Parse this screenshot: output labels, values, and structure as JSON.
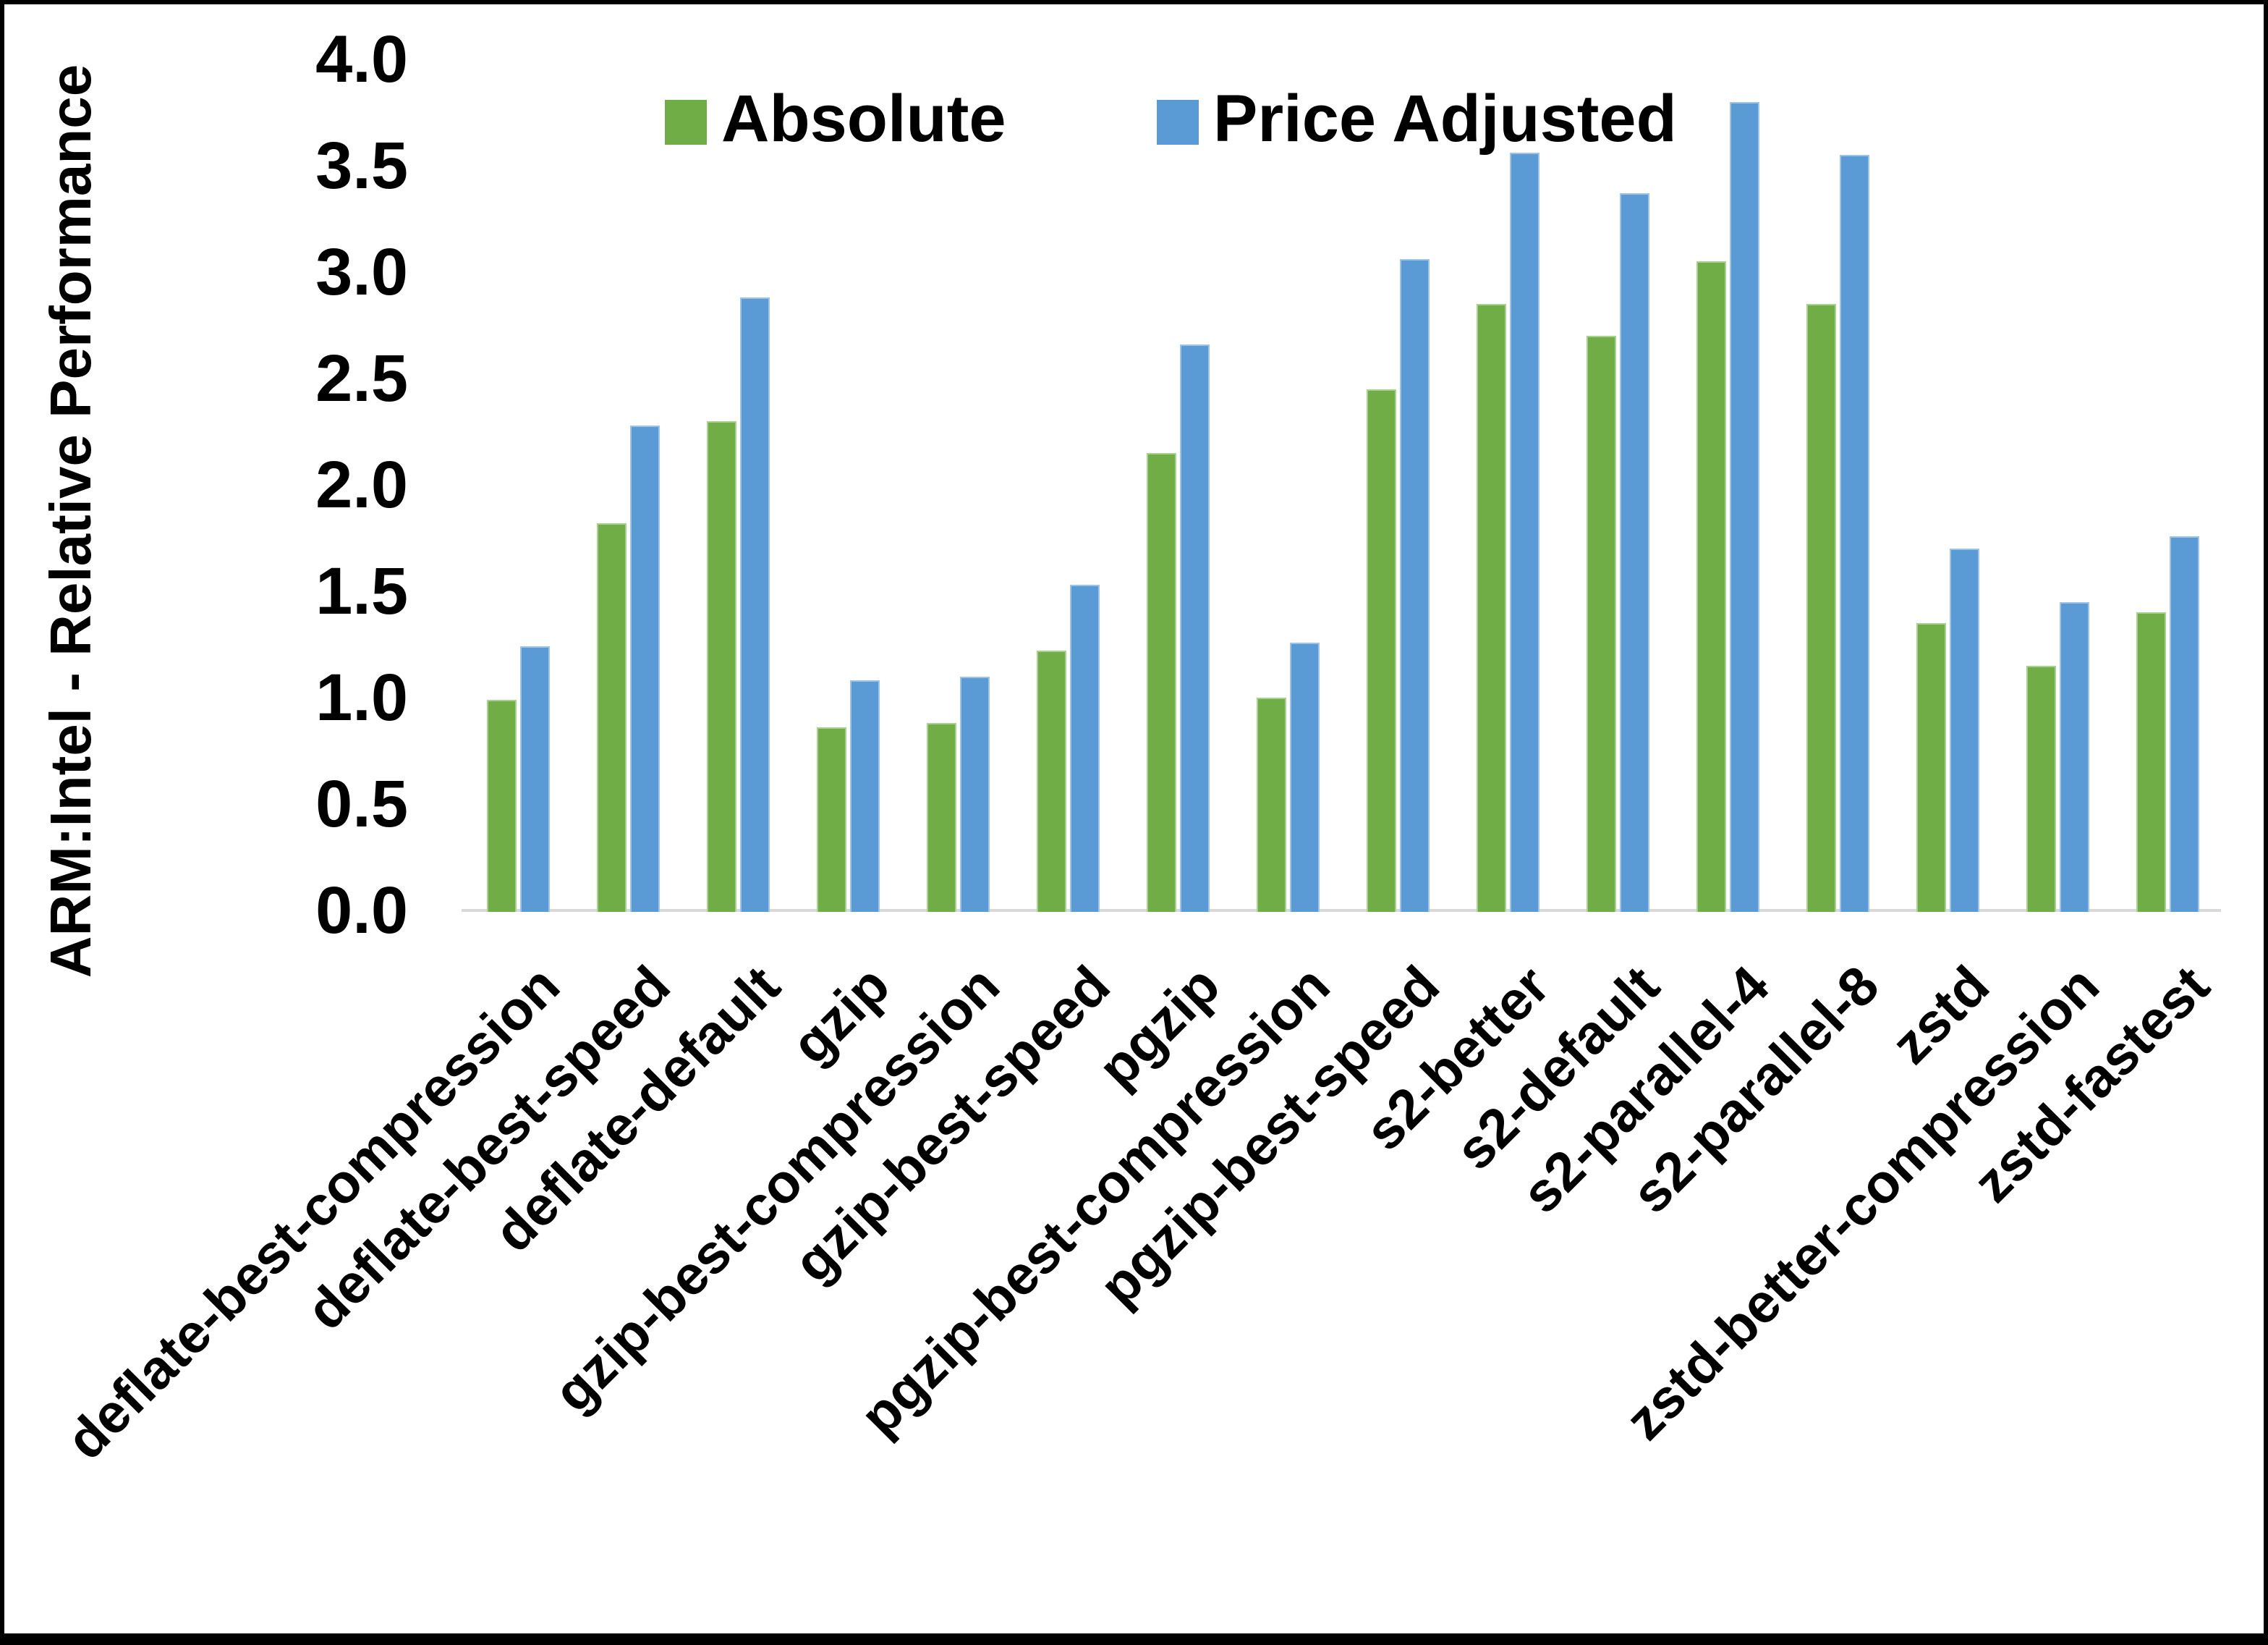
{
  "chart_data": {
    "type": "bar",
    "title": "",
    "xlabel": "",
    "ylabel": "ARM:Intel - Relative Performance",
    "ylim": [
      0.0,
      4.0
    ],
    "ytick_step": 0.5,
    "ytick_decimals": 1,
    "grid": false,
    "legend_position": "top-center",
    "axis_line_color": "#d9d9d9",
    "categories": [
      "deflate-best-compression",
      "deflate-best-speed",
      "deflate-default",
      "gzip",
      "gzip-best-compression",
      "gzip-best-speed",
      "pgzip",
      "pgzip-best-compression",
      "pgzip-best-speed",
      "s2-better",
      "s2-default",
      "s2-parallel-4",
      "s2-parallel-8",
      "zstd",
      "zstd-better-compression",
      "zstd-fastest"
    ],
    "series": [
      {
        "name": "Absolute",
        "color": "#70ad47",
        "values": [
          0.99,
          1.82,
          2.3,
          0.86,
          0.88,
          1.22,
          2.15,
          1.0,
          2.45,
          2.85,
          2.7,
          3.05,
          2.85,
          1.35,
          1.15,
          1.4
        ]
      },
      {
        "name": "Price Adjusted",
        "color": "#5b9bd5",
        "values": [
          1.24,
          2.28,
          2.88,
          1.08,
          1.1,
          1.53,
          2.66,
          1.26,
          3.06,
          3.56,
          3.37,
          3.8,
          3.55,
          1.7,
          1.45,
          1.76
        ]
      }
    ]
  }
}
